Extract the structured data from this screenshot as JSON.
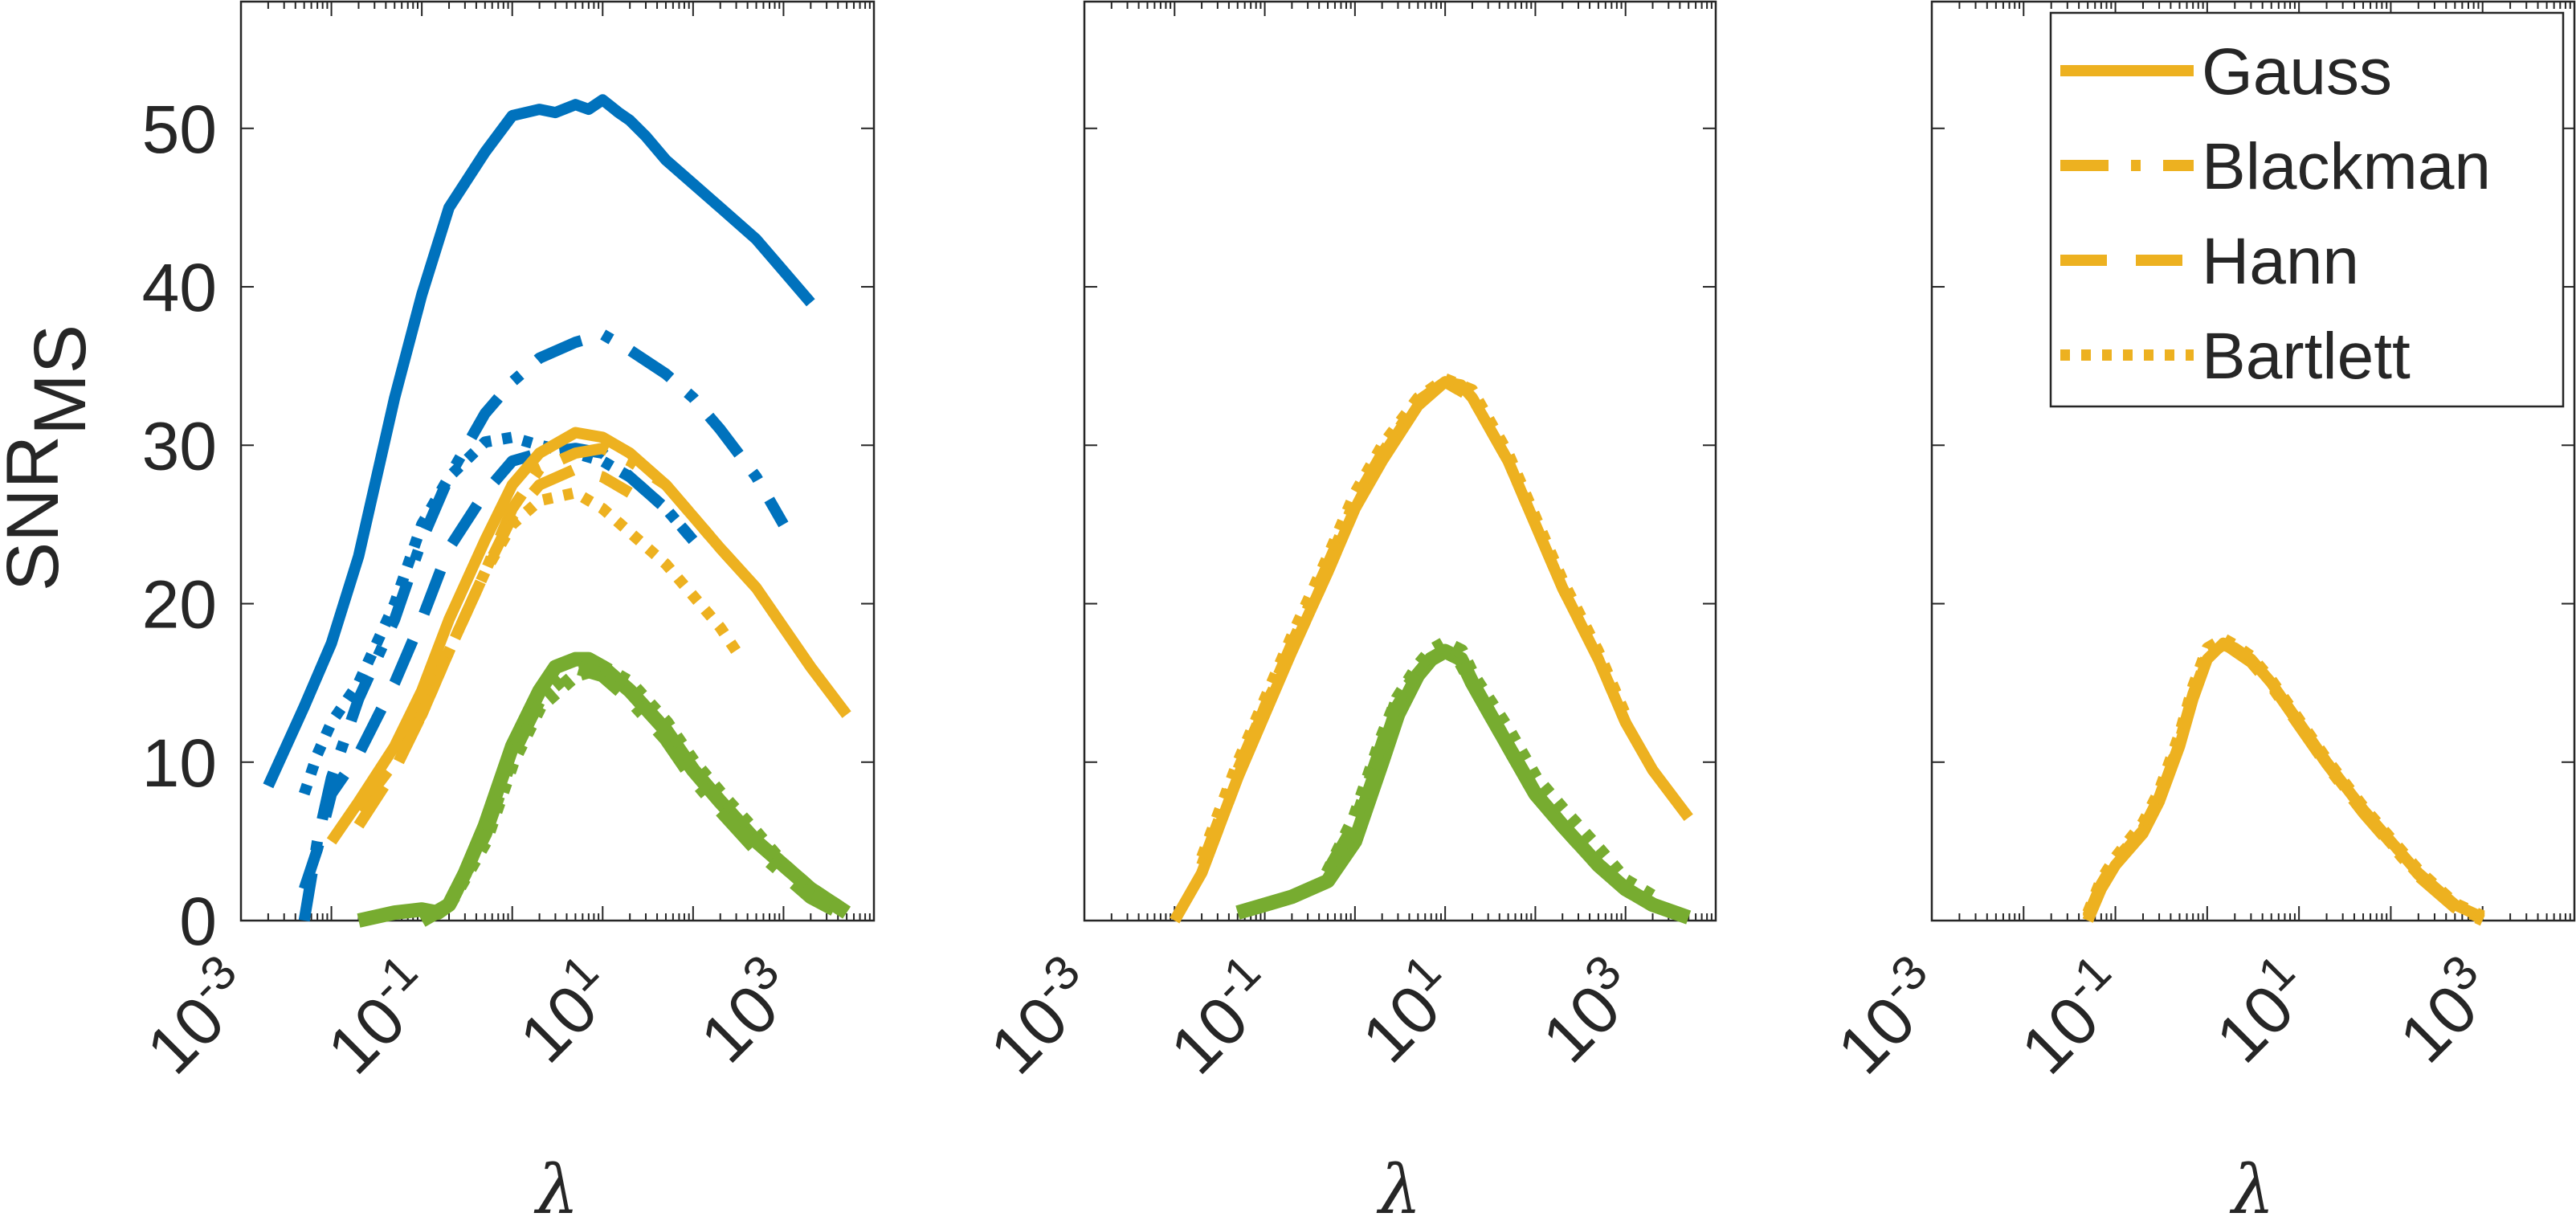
{
  "chart_data": [
    {
      "type": "line",
      "xscale": "log",
      "xlim": [
        0.001,
        10000
      ],
      "ylim": [
        0,
        58
      ],
      "xticks": [
        0.001,
        0.1,
        10,
        1000
      ],
      "xtick_labels": [
        {
          "base": "10",
          "exp": "-3"
        },
        {
          "base": "10",
          "exp": "-1"
        },
        {
          "base": "10",
          "exp": "1"
        },
        {
          "base": "10",
          "exp": "3"
        }
      ],
      "yticks": [
        0,
        10,
        20,
        30,
        40,
        50
      ],
      "ytick_labels": [
        "0",
        "10",
        "20",
        "30",
        "40",
        "50"
      ],
      "ylabel": {
        "base": "SNR",
        "sub": "MS"
      },
      "xlabel": "λ",
      "series": [
        {
          "color": "blue",
          "style": "solid",
          "x": [
            0.002,
            0.005,
            0.01,
            0.02,
            0.05,
            0.1,
            0.2,
            0.5,
            1,
            2,
            3,
            5,
            7,
            10,
            15,
            20,
            30,
            50,
            100,
            200,
            500,
            1000,
            2000
          ],
          "y": [
            8.5,
            13.5,
            17.5,
            23,
            33,
            39.5,
            45,
            48.5,
            50.8,
            51.2,
            51,
            51.5,
            51.2,
            51.8,
            51,
            50.5,
            49.5,
            48,
            46.5,
            45,
            43,
            41,
            39
          ]
        },
        {
          "color": "blue",
          "style": "dashdot",
          "x": [
            0.005,
            0.007,
            0.01,
            0.02,
            0.05,
            0.1,
            0.2,
            0.5,
            1,
            2,
            5,
            10,
            20,
            50,
            100,
            200,
            500,
            1000
          ],
          "y": [
            0,
            5,
            9,
            14,
            19,
            24,
            28,
            32,
            34,
            35.5,
            36.5,
            37,
            36,
            34.5,
            33,
            31,
            28,
            25
          ]
        },
        {
          "color": "blue",
          "style": "dashed",
          "x": [
            0.005,
            0.007,
            0.01,
            0.02,
            0.05,
            0.1,
            0.2,
            0.5,
            1,
            2,
            5,
            10,
            20,
            50,
            100
          ],
          "y": [
            2,
            4.5,
            8,
            10.5,
            15,
            19,
            23.5,
            27,
            29,
            29.5,
            29.8,
            29.5,
            28,
            26,
            24
          ]
        },
        {
          "color": "blue",
          "style": "dotted",
          "x": [
            0.005,
            0.007,
            0.01,
            0.02,
            0.05,
            0.1,
            0.2,
            0.5,
            1,
            2,
            5,
            10,
            20,
            50,
            100
          ],
          "y": [
            8,
            10.5,
            12.5,
            15,
            20,
            25,
            28,
            30.2,
            30.5,
            30,
            29.5,
            29,
            28,
            26,
            24
          ]
        },
        {
          "color": "orange",
          "style": "solid",
          "x": [
            0.01,
            0.02,
            0.05,
            0.1,
            0.2,
            0.5,
            1,
            2,
            5,
            10,
            20,
            50,
            100,
            200,
            500,
            1000,
            2000,
            5000
          ],
          "y": [
            5,
            7.5,
            11,
            14.5,
            19,
            24,
            27.5,
            29.5,
            30.8,
            30.5,
            29.5,
            27.5,
            25.5,
            23.5,
            21,
            18.5,
            16,
            13
          ]
        },
        {
          "color": "orange",
          "style": "dashdot",
          "x": [
            0.02,
            0.05,
            0.1,
            0.2,
            0.5,
            1,
            2,
            5,
            10,
            20,
            50,
            100,
            200,
            500
          ],
          "y": [
            7,
            10,
            13,
            17,
            22,
            26,
            28.5,
            29.5,
            29.8,
            29,
            27.5,
            25.5,
            23.5,
            21
          ]
        },
        {
          "color": "orange",
          "style": "dashed",
          "x": [
            0.02,
            0.05,
            0.1,
            0.2,
            0.5,
            1,
            2,
            5,
            10,
            20
          ],
          "y": [
            6,
            9.5,
            13,
            17,
            22,
            25.5,
            27.5,
            28.5,
            28,
            27
          ]
        },
        {
          "color": "orange",
          "style": "dotted",
          "x": [
            0.1,
            0.2,
            0.5,
            1,
            2,
            5,
            10,
            20,
            50,
            100,
            200,
            300
          ],
          "y": [
            13,
            17,
            22,
            25,
            26.5,
            27,
            26,
            24.5,
            22.5,
            20.5,
            18.5,
            17
          ]
        },
        {
          "color": "green",
          "style": "solid",
          "x": [
            0.02,
            0.05,
            0.1,
            0.15,
            0.2,
            0.3,
            0.5,
            1,
            2,
            3,
            5,
            7,
            10,
            20,
            50,
            100,
            200,
            500,
            1000,
            2000,
            5000
          ],
          "y": [
            0,
            0.5,
            0.7,
            0.5,
            1,
            3,
            6,
            11,
            14.5,
            16,
            16.5,
            16.5,
            16,
            14.5,
            12,
            9.5,
            7.5,
            5,
            3.5,
            2,
            0.5
          ]
        },
        {
          "color": "green",
          "style": "dashdot",
          "x": [
            0.1,
            0.2,
            0.5,
            1,
            2,
            5,
            10,
            20,
            50,
            100,
            200,
            500,
            1000,
            2000,
            5000
          ],
          "y": [
            0,
            1,
            5.5,
            10.5,
            14,
            16,
            15.5,
            14,
            11.5,
            9,
            7,
            4.5,
            3,
            1.5,
            0.3
          ]
        },
        {
          "color": "green",
          "style": "dotted",
          "x": [
            0.2,
            0.5,
            1,
            2,
            5,
            10,
            20,
            50,
            100,
            200,
            500,
            1000,
            2000,
            5000
          ],
          "y": [
            1,
            5,
            10,
            13.5,
            15.5,
            16,
            15,
            12.5,
            10,
            8,
            5.5,
            3.5,
            2,
            0.5
          ]
        }
      ]
    },
    {
      "type": "line",
      "xscale": "log",
      "xlim": [
        0.001,
        10000
      ],
      "ylim": [
        0,
        58
      ],
      "xticks": [
        0.001,
        0.1,
        10,
        1000
      ],
      "xtick_labels": [
        {
          "base": "10",
          "exp": "-3"
        },
        {
          "base": "10",
          "exp": "-1"
        },
        {
          "base": "10",
          "exp": "1"
        },
        {
          "base": "10",
          "exp": "3"
        }
      ],
      "xlabel": "λ",
      "series": [
        {
          "color": "orange",
          "style": "solid",
          "x": [
            0.01,
            0.02,
            0.05,
            0.1,
            0.2,
            0.5,
            1,
            2,
            5,
            10,
            15,
            20,
            50,
            100,
            200,
            500,
            1000,
            2000,
            5000
          ],
          "y": [
            0,
            3,
            9,
            13,
            17,
            22,
            26,
            29,
            32.5,
            34,
            33.8,
            33,
            29,
            25,
            21,
            16.5,
            12.5,
            9.5,
            6.5
          ]
        },
        {
          "color": "orange",
          "style": "dashdot",
          "x": [
            0.02,
            0.05,
            0.1,
            0.2,
            0.5,
            1,
            2,
            5,
            10,
            20,
            50,
            100,
            200,
            500,
            1000
          ],
          "y": [
            3.5,
            9.5,
            13.5,
            17.5,
            22.5,
            26.5,
            29.5,
            32.8,
            34,
            33,
            29,
            25,
            21,
            16.5,
            12.5
          ]
        },
        {
          "color": "orange",
          "style": "dashed",
          "x": [
            0.02,
            0.05,
            0.1,
            0.2,
            0.5,
            1,
            2,
            5,
            10,
            20,
            50,
            100,
            200,
            500
          ],
          "y": [
            3,
            9,
            13.5,
            17,
            22,
            26,
            29.3,
            32.7,
            34,
            33,
            29,
            25,
            21,
            16.5
          ]
        },
        {
          "color": "orange",
          "style": "dotted",
          "x": [
            0.02,
            0.05,
            0.1,
            0.2,
            0.5,
            1,
            2,
            5,
            10,
            20,
            50,
            100,
            200,
            500,
            1000
          ],
          "y": [
            4,
            10,
            14,
            18,
            23,
            27,
            30,
            33,
            34.2,
            33.5,
            29.5,
            25.5,
            21.5,
            17,
            13
          ]
        },
        {
          "color": "green",
          "style": "solid",
          "x": [
            0.05,
            0.1,
            0.2,
            0.5,
            1,
            2,
            3,
            5,
            7,
            10,
            15,
            20,
            50,
            100,
            200,
            500,
            1000,
            2000,
            5000
          ],
          "y": [
            0.5,
            1,
            1.5,
            2.5,
            5,
            10,
            13,
            15.5,
            16.5,
            17,
            16.5,
            15,
            11,
            8,
            6,
            3.5,
            2,
            1,
            0.2
          ]
        },
        {
          "color": "green",
          "style": "dashdot",
          "x": [
            0.5,
            1,
            2,
            3,
            5,
            7,
            10,
            15,
            20,
            50,
            100,
            200,
            500,
            1000,
            2000
          ],
          "y": [
            3,
            6,
            11,
            14,
            15.5,
            16.5,
            17,
            16.3,
            15,
            11,
            8,
            6,
            3.5,
            2,
            1
          ]
        },
        {
          "color": "green",
          "style": "dashed",
          "x": [
            0.5,
            1,
            2,
            3,
            5,
            7,
            10,
            15,
            20,
            50,
            100,
            200,
            500,
            1000,
            2000
          ],
          "y": [
            2.5,
            5.5,
            10.5,
            13.5,
            15.5,
            16.5,
            17,
            16.5,
            15,
            11,
            8,
            6,
            3.5,
            2,
            1
          ]
        },
        {
          "color": "green",
          "style": "dotted",
          "x": [
            0.5,
            1,
            2,
            3,
            5,
            7,
            10,
            15,
            20,
            50,
            100,
            200,
            500,
            1000,
            2000
          ],
          "y": [
            3,
            6.5,
            11.5,
            14,
            16,
            17,
            17.5,
            17,
            15.5,
            12,
            9,
            7,
            4.5,
            2.5,
            1.5
          ]
        }
      ]
    },
    {
      "type": "line",
      "xscale": "log",
      "xlim": [
        0.001,
        10000
      ],
      "ylim": [
        0,
        58
      ],
      "xticks": [
        0.001,
        0.1,
        10,
        1000
      ],
      "xtick_labels": [
        {
          "base": "10",
          "exp": "-3"
        },
        {
          "base": "10",
          "exp": "-1"
        },
        {
          "base": "10",
          "exp": "1"
        },
        {
          "base": "10",
          "exp": "3"
        }
      ],
      "xlabel": "λ",
      "legend": {
        "placement": "top-right",
        "entries": [
          {
            "label": "Gauss",
            "style": "solid"
          },
          {
            "label": "Blackman",
            "style": "dashdot"
          },
          {
            "label": "Hann",
            "style": "dashed"
          },
          {
            "label": "Bartlett",
            "style": "dotted"
          }
        ]
      },
      "series": [
        {
          "color": "orange",
          "style": "solid",
          "x": [
            0.05,
            0.07,
            0.1,
            0.2,
            0.3,
            0.5,
            0.7,
            1,
            1.5,
            2,
            3,
            5,
            10,
            20,
            50,
            100,
            200,
            500,
            1000
          ],
          "y": [
            0,
            2,
            3.5,
            5.5,
            7.5,
            11,
            14,
            16.5,
            17.5,
            17.2,
            16.5,
            15,
            12.5,
            10,
            7,
            5,
            3,
            1,
            0.2
          ]
        },
        {
          "color": "orange",
          "style": "dashdot",
          "x": [
            0.05,
            0.07,
            0.1,
            0.2,
            0.3,
            0.5,
            0.7,
            1,
            1.5,
            2,
            3,
            5,
            10,
            20,
            50,
            100,
            200,
            500,
            1000
          ],
          "y": [
            0.3,
            2.3,
            3.8,
            5.8,
            7.8,
            11.3,
            14.3,
            16.8,
            17.5,
            17,
            16.3,
            14.8,
            12.3,
            9.8,
            6.8,
            4.8,
            2.8,
            0.8,
            0
          ]
        },
        {
          "color": "orange",
          "style": "dashed",
          "x": [
            0.05,
            0.07,
            0.1,
            0.2,
            0.3,
            0.5,
            0.7,
            1,
            1.5,
            2,
            3,
            5,
            10,
            20,
            50,
            100,
            200,
            500,
            1000
          ],
          "y": [
            0.2,
            2.2,
            3.7,
            5.7,
            7.7,
            11.2,
            14.2,
            16.7,
            17.4,
            17.1,
            16.4,
            14.9,
            12.4,
            9.9,
            6.9,
            4.9,
            2.9,
            0.9,
            0.1
          ]
        },
        {
          "color": "orange",
          "style": "dotted",
          "x": [
            0.05,
            0.07,
            0.1,
            0.2,
            0.3,
            0.5,
            0.7,
            1,
            1.5,
            2,
            3,
            5,
            10,
            20,
            50,
            100,
            200,
            500,
            1000
          ],
          "y": [
            0.5,
            2.6,
            4,
            6.2,
            8.2,
            11.8,
            14.8,
            17.2,
            17.8,
            17.4,
            16.7,
            15.2,
            12.7,
            10.2,
            7.2,
            5.2,
            3.2,
            1.1,
            0.3
          ]
        }
      ]
    }
  ],
  "colors": {
    "blue": "#0072bd",
    "orange": "#edb120",
    "green": "#77ac30",
    "axis": "#262626",
    "legend_box": "#262626"
  }
}
